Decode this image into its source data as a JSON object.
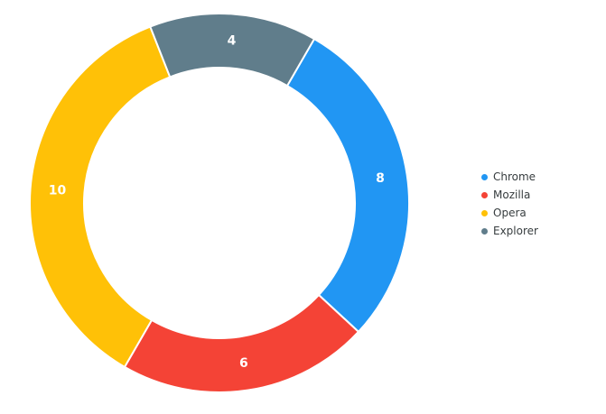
{
  "chart_data": {
    "type": "pie",
    "donut": true,
    "categories": [
      "Chrome",
      "Mozilla",
      "Opera",
      "Explorer"
    ],
    "values": [
      8,
      6,
      10,
      4
    ],
    "colors": [
      "#2196F3",
      "#F44336",
      "#FFC107",
      "#607D8B"
    ],
    "data_labels": [
      "8",
      "6",
      "10",
      "4"
    ],
    "legend_position": "right",
    "start_angle_deg": 30,
    "title": ""
  },
  "legend": {
    "items": [
      {
        "label": "Chrome",
        "color": "#2196F3"
      },
      {
        "label": "Mozilla",
        "color": "#F44336"
      },
      {
        "label": "Opera",
        "color": "#FFC107"
      },
      {
        "label": "Explorer",
        "color": "#607D8B"
      }
    ]
  }
}
